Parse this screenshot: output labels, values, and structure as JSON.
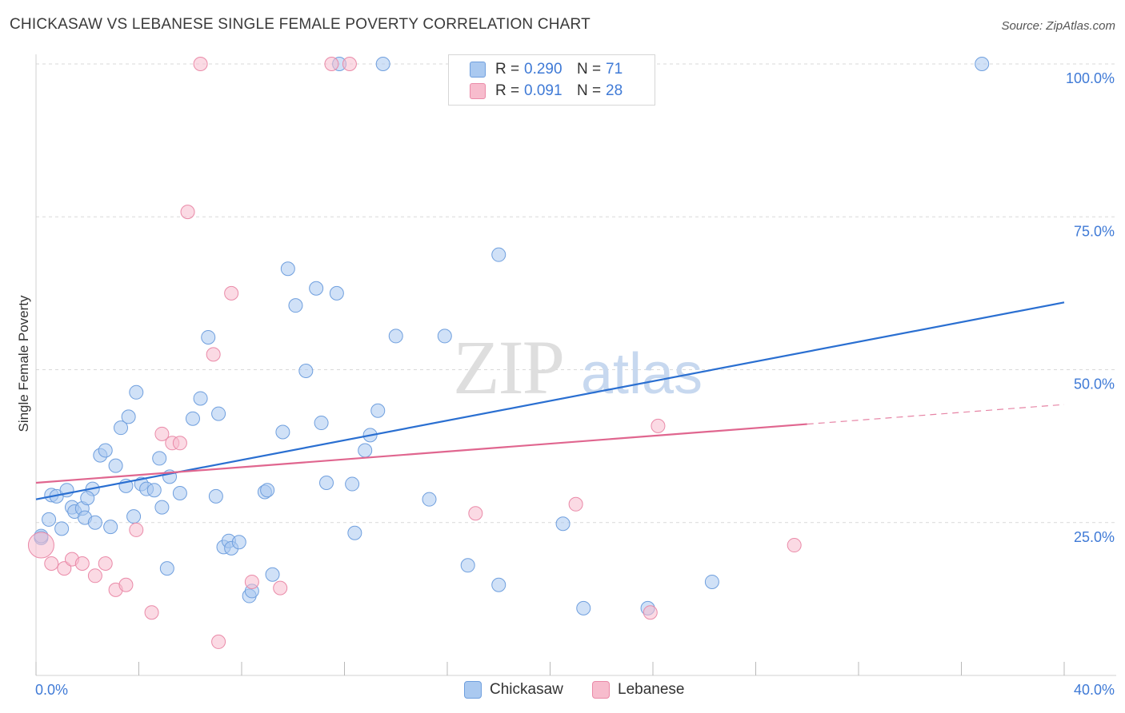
{
  "title": "CHICKASAW VS LEBANESE SINGLE FEMALE POVERTY CORRELATION CHART",
  "source": "Source: ZipAtlas.com",
  "legend": {
    "rows": [
      {
        "r_label": "R =",
        "r_value": "0.290",
        "n_label": "N =",
        "n_value": "71"
      },
      {
        "r_label": "R =",
        "r_value": "0.091",
        "n_label": "N =",
        "n_value": "28"
      }
    ]
  },
  "watermark": {
    "zip": "ZIP",
    "atlas": "atlas"
  },
  "colors": {
    "chickasaw_fill": "#aac9f0",
    "chickasaw_stroke": "#6f9fde",
    "chickasaw_line": "#2a6fd1",
    "lebanese_fill": "#f7bccd",
    "lebanese_stroke": "#ea8aa8",
    "lebanese_line": "#e0668f",
    "tick_text": "#3f7ad6",
    "grid": "#d9d9d9"
  },
  "chart_data": {
    "type": "scatter",
    "xlabel": "",
    "ylabel": "Single Female Poverty",
    "xlim": [
      0,
      40
    ],
    "ylim": [
      0,
      100
    ],
    "x_tick_labels": [
      "0.0%",
      "40.0%"
    ],
    "y_tick_labels": [
      {
        "value": 25,
        "label": "25.0%"
      },
      {
        "value": 50,
        "label": "50.0%"
      },
      {
        "value": 75,
        "label": "75.0%"
      },
      {
        "value": 100,
        "label": "100.0%"
      }
    ],
    "grid": true,
    "legend_position": "top-center",
    "series": [
      {
        "name": "Chickasaw",
        "r": 0.29,
        "n": 71,
        "trend": {
          "x0": 0,
          "y0": 28.8,
          "x1": 40,
          "y1": 61.0
        },
        "points": [
          [
            0.2,
            22.5
          ],
          [
            0.5,
            25.5
          ],
          [
            0.6,
            29.5
          ],
          [
            0.8,
            29.3
          ],
          [
            1.0,
            24.0
          ],
          [
            1.2,
            30.3
          ],
          [
            1.4,
            27.5
          ],
          [
            1.5,
            26.8
          ],
          [
            1.8,
            27.3
          ],
          [
            1.9,
            25.8
          ],
          [
            2.2,
            30.5
          ],
          [
            2.3,
            25.0
          ],
          [
            2.5,
            36.0
          ],
          [
            2.7,
            36.8
          ],
          [
            2.9,
            24.3
          ],
          [
            3.1,
            34.3
          ],
          [
            3.3,
            40.5
          ],
          [
            3.5,
            31.0
          ],
          [
            3.6,
            42.3
          ],
          [
            3.8,
            26.0
          ],
          [
            3.9,
            46.3
          ],
          [
            4.1,
            31.3
          ],
          [
            4.3,
            30.5
          ],
          [
            4.6,
            30.3
          ],
          [
            4.8,
            35.5
          ],
          [
            4.9,
            27.5
          ],
          [
            5.1,
            17.5
          ],
          [
            5.2,
            32.5
          ],
          [
            5.6,
            29.8
          ],
          [
            6.1,
            42.0
          ],
          [
            6.4,
            45.3
          ],
          [
            6.7,
            55.3
          ],
          [
            7.0,
            29.3
          ],
          [
            7.1,
            42.8
          ],
          [
            7.3,
            21.0
          ],
          [
            7.5,
            22.0
          ],
          [
            7.6,
            20.8
          ],
          [
            7.9,
            21.8
          ],
          [
            8.3,
            13.0
          ],
          [
            8.4,
            13.8
          ],
          [
            8.9,
            30.0
          ],
          [
            9.0,
            30.3
          ],
          [
            9.2,
            16.5
          ],
          [
            9.6,
            39.8
          ],
          [
            9.8,
            66.5
          ],
          [
            10.1,
            60.5
          ],
          [
            10.5,
            49.8
          ],
          [
            10.9,
            63.3
          ],
          [
            11.1,
            41.3
          ],
          [
            11.3,
            31.5
          ],
          [
            11.7,
            62.5
          ],
          [
            11.8,
            100.0
          ],
          [
            12.3,
            31.3
          ],
          [
            12.4,
            23.3
          ],
          [
            12.8,
            36.8
          ],
          [
            13.0,
            39.3
          ],
          [
            13.3,
            43.3
          ],
          [
            13.5,
            100.0
          ],
          [
            14.0,
            55.5
          ],
          [
            15.3,
            28.8
          ],
          [
            15.9,
            55.5
          ],
          [
            16.8,
            18.0
          ],
          [
            18.0,
            68.8
          ],
          [
            18.0,
            14.8
          ],
          [
            20.5,
            24.8
          ],
          [
            21.3,
            11.0
          ],
          [
            23.8,
            11.0
          ],
          [
            26.3,
            15.3
          ],
          [
            36.8,
            100.0
          ],
          [
            0.2,
            22.8
          ],
          [
            2.0,
            29.0
          ]
        ]
      },
      {
        "name": "Lebanese",
        "r": 0.091,
        "n": 28,
        "trend": {
          "x0": 0,
          "y0": 31.5,
          "x1": 30,
          "y1": 41.1,
          "dash_to_x": 40,
          "dash_to_y": 44.3
        },
        "points": [
          [
            0.2,
            21.3
          ],
          [
            0.6,
            18.3
          ],
          [
            1.1,
            17.5
          ],
          [
            1.4,
            19.0
          ],
          [
            1.8,
            18.3
          ],
          [
            2.3,
            16.3
          ],
          [
            2.7,
            18.3
          ],
          [
            3.1,
            14.0
          ],
          [
            3.5,
            14.8
          ],
          [
            3.9,
            23.8
          ],
          [
            4.5,
            10.3
          ],
          [
            4.9,
            39.5
          ],
          [
            5.3,
            38.0
          ],
          [
            5.6,
            38.0
          ],
          [
            5.9,
            75.8
          ],
          [
            6.4,
            100.0
          ],
          [
            6.9,
            52.5
          ],
          [
            7.1,
            5.5
          ],
          [
            7.6,
            62.5
          ],
          [
            8.4,
            15.3
          ],
          [
            9.5,
            14.3
          ],
          [
            11.5,
            100.0
          ],
          [
            12.2,
            100.0
          ],
          [
            17.1,
            26.5
          ],
          [
            21.0,
            28.0
          ],
          [
            23.9,
            10.3
          ],
          [
            24.2,
            40.8
          ],
          [
            29.5,
            21.3
          ]
        ]
      }
    ]
  },
  "bottom_legend": [
    "Chickasaw",
    "Lebanese"
  ]
}
